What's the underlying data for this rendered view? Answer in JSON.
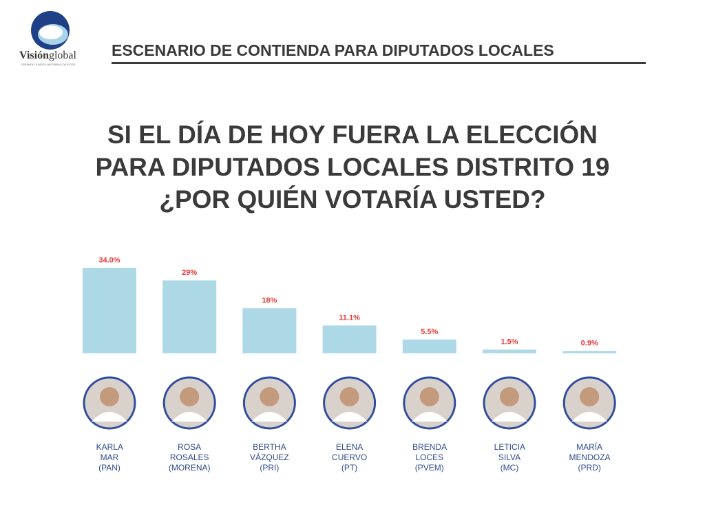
{
  "logo": {
    "name_bold": "Visión",
    "name_rest": "global",
    "tagline": "CREANDO JUNTOS HISTORIAS DE ÉXITO"
  },
  "header": "ESCENARIO DE CONTIENDA PARA DIPUTADOS LOCALES",
  "chart_data": {
    "type": "bar",
    "title": "SI EL DÍA DE HOY FUERA LA ELECCIÓN\nPARA DIPUTADOS LOCALES DISTRITO 19\n¿POR QUIÉN VOTARÍA USTED?",
    "categories": [
      "KARLA MAR (PAN)",
      "ROSA ROSALES (MORENA)",
      "BERTHA VÁZQUEZ (PRI)",
      "ELENA CUERVO (PT)",
      "BRENDA LOCES (PVEM)",
      "LETICIA SILVA (MC)",
      "MARÍA MENDOZA (PRD)"
    ],
    "values": [
      34,
      29,
      18,
      11.1,
      5.5,
      1.5,
      0.9
    ],
    "value_labels": [
      "34.0%",
      "29%",
      "18%",
      "11.1%",
      "5.5%",
      "1.5%",
      "0.9%"
    ],
    "color": "#add8e6",
    "label_color": "#e53935"
  }
}
